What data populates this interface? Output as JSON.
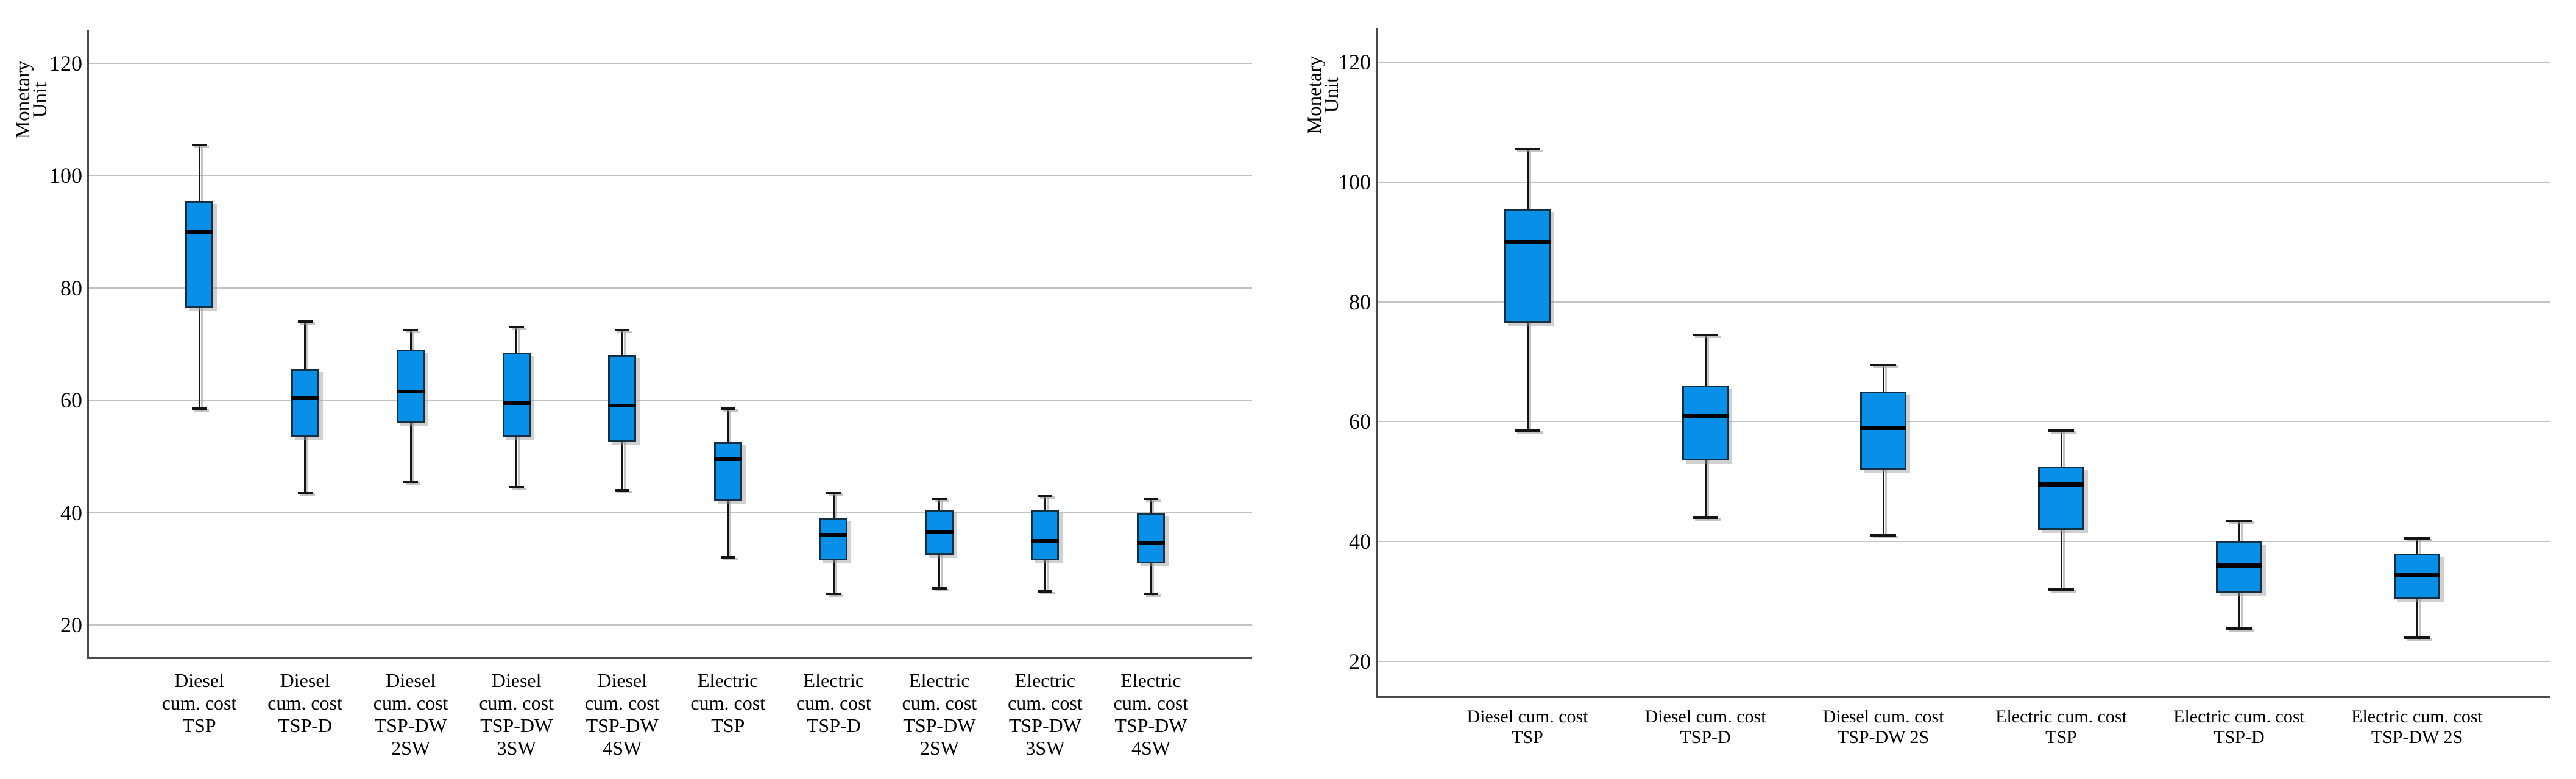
{
  "app": "statistics-boxplot-output",
  "colors": {
    "box_fill": "#0890E8",
    "box_border": "#132F44",
    "median": "#000000",
    "whisker": "#141414",
    "gridline": "#C3C3C3",
    "axis": "#4A4A4A",
    "background": "#FFFFFF",
    "shadow": "#969696"
  },
  "chart_data": [
    {
      "id": "left",
      "type": "boxplot",
      "title": "",
      "xlabel": "",
      "ylabel": "Monetary Unit",
      "yticks": [
        120,
        100,
        80,
        60,
        40,
        20
      ],
      "ylim": [
        14,
        126
      ],
      "grid": "horizontal",
      "legend": "none",
      "categories": [
        "Diesel cum. cost TSP",
        "Diesel cum. cost TSP-D",
        "Diesel cum. cost TSP-DW 2SW",
        "Diesel cum. cost TSP-DW 3SW",
        "Diesel cum. cost TSP-DW 4SW",
        "Electric cum. cost TSP",
        "Electric cum. cost TSP-D",
        "Electric cum. cost TSP-DW 2SW",
        "Electric cum. cost TSP-DW 3SW",
        "Electric cum. cost TSP-DW 4SW"
      ],
      "boxes": [
        {
          "label": "Diesel cum. cost TSP",
          "lines": [
            "Diesel",
            "cum. cost",
            "TSP"
          ],
          "min": 58.5,
          "q1": 76.5,
          "median": 90,
          "q3": 95.5,
          "max": 105.5
        },
        {
          "label": "Diesel cum. cost TSP-D",
          "lines": [
            "Diesel",
            "cum. cost",
            "TSP-D"
          ],
          "min": 43.5,
          "q1": 53.5,
          "median": 60.5,
          "q3": 65.5,
          "max": 74
        },
        {
          "label": "Diesel cum. cost TSP-DW 2SW",
          "lines": [
            "Diesel",
            "cum. cost",
            "TSP-DW",
            "2SW"
          ],
          "min": 45.5,
          "q1": 56,
          "median": 61.5,
          "q3": 69,
          "max": 72.5
        },
        {
          "label": "Diesel cum. cost TSP-DW 3SW",
          "lines": [
            "Diesel",
            "cum. cost",
            "TSP-DW",
            "3SW"
          ],
          "min": 44.5,
          "q1": 53.5,
          "median": 59.5,
          "q3": 68.5,
          "max": 73
        },
        {
          "label": "Diesel cum. cost TSP-DW 4SW",
          "lines": [
            "Diesel",
            "cum. cost",
            "TSP-DW",
            "4SW"
          ],
          "min": 44,
          "q1": 52.5,
          "median": 59,
          "q3": 68,
          "max": 72.5
        },
        {
          "label": "Electric cum. cost TSP",
          "lines": [
            "Electric",
            "cum. cost",
            "TSP"
          ],
          "min": 32,
          "q1": 42,
          "median": 49.5,
          "q3": 52.5,
          "max": 58.5
        },
        {
          "label": "Electric cum. cost TSP-D",
          "lines": [
            "Electric",
            "cum. cost",
            "TSP-D"
          ],
          "min": 25.5,
          "q1": 31.5,
          "median": 36,
          "q3": 39,
          "max": 43.5
        },
        {
          "label": "Electric cum. cost TSP-DW 2SW",
          "lines": [
            "Electric",
            "cum. cost",
            "TSP-DW",
            "2SW"
          ],
          "min": 26.5,
          "q1": 32.5,
          "median": 36.5,
          "q3": 40.5,
          "max": 42.5
        },
        {
          "label": "Electric cum. cost TSP-DW 3SW",
          "lines": [
            "Electric",
            "cum. cost",
            "TSP-DW",
            "3SW"
          ],
          "min": 26,
          "q1": 31.5,
          "median": 35,
          "q3": 40.5,
          "max": 43
        },
        {
          "label": "Electric cum. cost TSP-DW 4SW",
          "lines": [
            "Electric",
            "cum. cost",
            "TSP-DW",
            "4SW"
          ],
          "min": 25.5,
          "q1": 31,
          "median": 34.5,
          "q3": 40,
          "max": 42.5
        }
      ]
    },
    {
      "id": "right",
      "type": "boxplot",
      "title": "",
      "xlabel": "",
      "ylabel": "Monetary Unit",
      "yticks": [
        120,
        100,
        80,
        60,
        40,
        20
      ],
      "ylim": [
        16,
        126
      ],
      "grid": "horizontal",
      "legend": "none",
      "categories": [
        "Diesel cum. cost TSP",
        "Diesel cum. cost TSP-D",
        "Diesel cum. cost TSP-DW 2S",
        "Electric cum. cost TSP",
        "Electric cum. cost TSP-D",
        "Electric cum. cost TSP-DW 2S"
      ],
      "boxes": [
        {
          "label": "Diesel cum. cost TSP",
          "lines": [
            "Diesel cum. cost",
            "TSP"
          ],
          "min": 58.5,
          "q1": 76.5,
          "median": 90,
          "q3": 95.5,
          "max": 105.5
        },
        {
          "label": "Diesel cum. cost TSP-D",
          "lines": [
            "Diesel cum. cost",
            "TSP-D"
          ],
          "min": 44,
          "q1": 53.5,
          "median": 61,
          "q3": 66,
          "max": 74.5
        },
        {
          "label": "Diesel cum. cost TSP-DW 2S",
          "lines": [
            "Diesel cum. cost",
            "TSP-DW 2S"
          ],
          "min": 41,
          "q1": 52,
          "median": 59,
          "q3": 65,
          "max": 69.5
        },
        {
          "label": "Electric cum. cost TSP",
          "lines": [
            "Electric cum. cost",
            "TSP"
          ],
          "min": 32,
          "q1": 42,
          "median": 49.5,
          "q3": 52.5,
          "max": 58.5
        },
        {
          "label": "Electric cum. cost TSP-D",
          "lines": [
            "Electric cum. cost",
            "TSP-D"
          ],
          "min": 25.5,
          "q1": 31.5,
          "median": 36,
          "q3": 40,
          "max": 43.5
        },
        {
          "label": "Electric cum. cost TSP-DW 2S",
          "lines": [
            "Electric cum. cost",
            "TSP-DW 2S"
          ],
          "min": 24,
          "q1": 30.5,
          "median": 34.5,
          "q3": 38,
          "max": 40.5
        }
      ]
    }
  ]
}
